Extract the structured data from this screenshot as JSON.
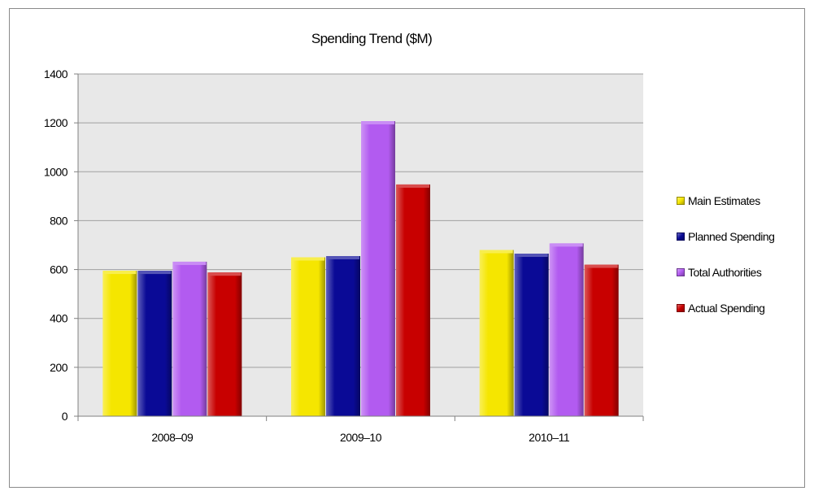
{
  "chart_data": {
    "type": "bar",
    "title": "Spending Trend ($M)",
    "xlabel": "",
    "ylabel": "",
    "categories": [
      "2008–09",
      "2009–10",
      "2010–11"
    ],
    "ylim": [
      0,
      1400
    ],
    "yticks": [
      0,
      200,
      400,
      600,
      800,
      1000,
      1200,
      1400
    ],
    "grid": true,
    "legend_position": "right",
    "series": [
      {
        "name": "Main Estimates",
        "color": "#f5e600",
        "values": [
          595,
          650,
          680
        ]
      },
      {
        "name": "Planned Spending",
        "color": "#0a0a96",
        "values": [
          595,
          655,
          665
        ]
      },
      {
        "name": "Total Authorities",
        "color": "#b25bf0",
        "values": [
          632,
          1207,
          707
        ]
      },
      {
        "name": "Actual Spending",
        "color": "#c80000",
        "values": [
          588,
          948,
          620
        ]
      }
    ]
  }
}
